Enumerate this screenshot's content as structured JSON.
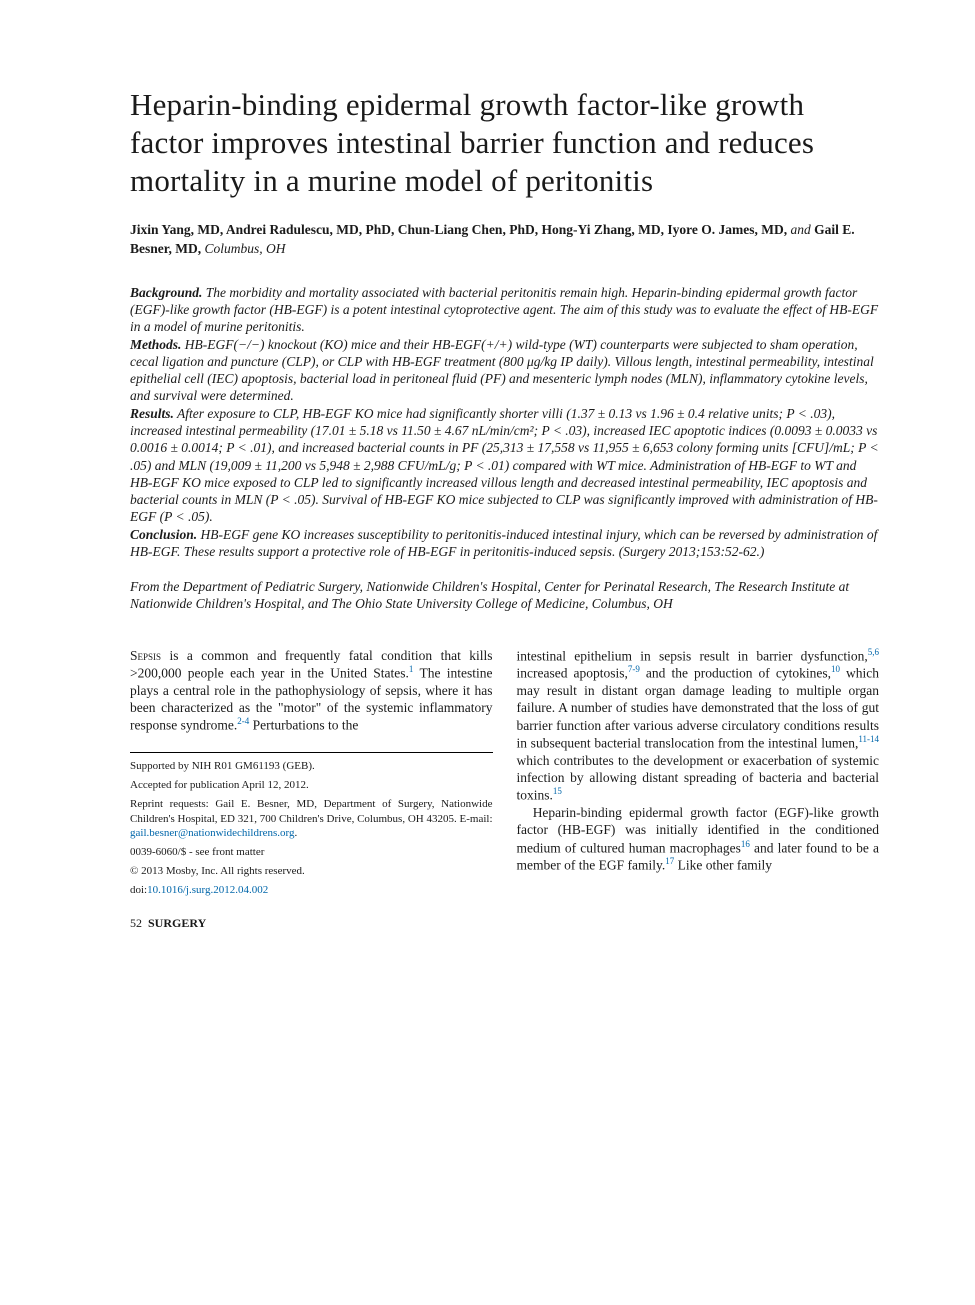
{
  "title": "Heparin-binding epidermal growth factor-like growth factor improves intestinal barrier function and reduces mortality in a murine model of peritonitis",
  "authors_html": "<b>Jixin Yang, MD, Andrei Radulescu, MD, PhD, Chun-Liang Chen, PhD, Hong-Yi Zhang, MD, Iyore O. James, MD,</b> <i>and</i> <b>Gail E. Besner, MD,</b> <i>Columbus, OH</i>",
  "abstract": {
    "background": {
      "label": "Background.",
      "text": " The morbidity and mortality associated with bacterial peritonitis remain high. Heparin-binding epidermal growth factor (EGF)-like growth factor (HB-EGF) is a potent intestinal cytoprotective agent. The aim of this study was to evaluate the effect of HB-EGF in a model of murine peritonitis."
    },
    "methods": {
      "label": "Methods.",
      "text": " HB-EGF(−/−) knockout (KO) mice and their HB-EGF(+/+) wild-type (WT) counterparts were subjected to sham operation, cecal ligation and puncture (CLP), or CLP with HB-EGF treatment (800 μg/kg IP daily). Villous length, intestinal permeability, intestinal epithelial cell (IEC) apoptosis, bacterial load in peritoneal fluid (PF) and mesenteric lymph nodes (MLN), inflammatory cytokine levels, and survival were determined."
    },
    "results": {
      "label": "Results.",
      "text": " After exposure to CLP, HB-EGF KO mice had significantly shorter villi (1.37 ± 0.13 vs 1.96 ± 0.4 relative units; P < .03), increased intestinal permeability (17.01 ± 5.18 vs 11.50 ± 4.67 nL/min/cm²; P < .03), increased IEC apoptotic indices (0.0093 ± 0.0033 vs 0.0016 ± 0.0014; P < .01), and increased bacterial counts in PF (25,313 ± 17,558 vs 11,955 ± 6,653 colony forming units [CFU]/mL; P < .05) and MLN (19,009 ± 11,200 vs 5,948 ± 2,988 CFU/mL/g; P < .01) compared with WT mice. Administration of HB-EGF to WT and HB-EGF KO mice exposed to CLP led to significantly increased villous length and decreased intestinal permeability, IEC apoptosis and bacterial counts in MLN (P < .05). Survival of HB-EGF KO mice subjected to CLP was significantly improved with administration of HB-EGF (P < .05)."
    },
    "conclusion": {
      "label": "Conclusion.",
      "text": " HB-EGF gene KO increases susceptibility to peritonitis-induced intestinal injury, which can be reversed by administration of HB-EGF. These results support a protective role of HB-EGF in peritonitis-induced sepsis. (Surgery 2013;153:52-62.)"
    }
  },
  "affiliation": "From the Department of Pediatric Surgery, Nationwide Children's Hospital, Center for Perinatal Research, The Research Institute at Nationwide Children's Hospital, and The Ohio State University College of Medicine, Columbus, OH",
  "body": {
    "col1": {
      "p1_html": "<span class=\"smallcaps\">Sepsis</span> is a common and frequently fatal condition that kills >200,000 people each year in the United States.<span class=\"sup\">1</span> The intestine plays a central role in the pathophysiology of sepsis, where it has been characterized as the \"motor\" of the systemic inflammatory response syndrome.<span class=\"sup\">2-4</span> Perturbations to the"
    },
    "col2": {
      "p1_html": "intestinal epithelium in sepsis result in barrier dysfunction,<span class=\"sup\">5,6</span> increased apoptosis,<span class=\"sup\">7-9</span> and the production of cytokines,<span class=\"sup\">10</span> which may result in distant organ damage leading to multiple organ failure. A number of studies have demonstrated that the loss of gut barrier function after various adverse circulatory conditions results in subsequent bacterial translocation from the intestinal lumen,<span class=\"sup\">11-14</span> which contributes to the development or exacerbation of systemic infection by allowing distant spreading of bacteria and bacterial toxins.<span class=\"sup\">15</span>",
      "p2_html": "Heparin-binding epidermal growth factor (EGF)-like growth factor (HB-EGF) was initially identified in the conditioned medium of cultured human macrophages<span class=\"sup\">16</span> and later found to be a member of the EGF family.<span class=\"sup\">17</span> Like other family"
    }
  },
  "footnotes": {
    "support": "Supported by NIH R01 GM61193 (GEB).",
    "accepted": "Accepted for publication April 12, 2012.",
    "reprint_html": "Reprint requests: Gail E. Besner, MD, Department of Surgery, Nationwide Children's Hospital, ED 321, 700 Children's Drive, Columbus, OH 43205. E-mail: <span class=\"link\">gail.besner@nationwidechildrens.org</span>.",
    "issn": "0039-6060/$ - see front matter",
    "copyright": "© 2013 Mosby, Inc. All rights reserved.",
    "doi_html": "doi:<span class=\"link\">10.1016/j.surg.2012.04.002</span>"
  },
  "pagefoot": {
    "num": "52",
    "journal": "SURGERY"
  },
  "colors": {
    "text": "#1a1a1a",
    "link": "#0066aa",
    "background": "#ffffff"
  },
  "typography": {
    "title_fontsize": 31,
    "body_fontsize": 13.5,
    "footnote_fontsize": 11,
    "font_family": "Baskerville / serif"
  }
}
